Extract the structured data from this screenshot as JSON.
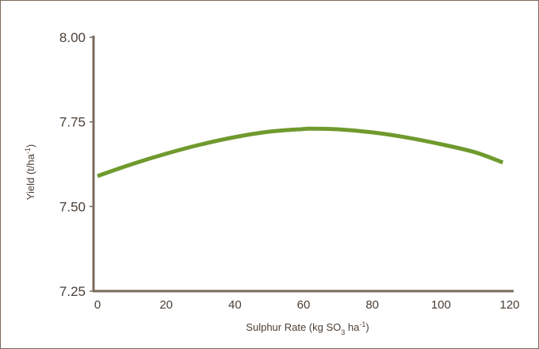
{
  "chart_data": {
    "type": "line",
    "title": "",
    "xlabel": {
      "prefix": "Sulphur Rate (kg SO",
      "subscript": "3",
      "middle": " ha",
      "superscript": "-1",
      "suffix": ")"
    },
    "ylabel": {
      "prefix": "Yield (t/ha",
      "superscript": "-1",
      "suffix": ")"
    },
    "xlim": [
      0,
      120
    ],
    "ylim": [
      7.25,
      8.0
    ],
    "x_ticks": [
      0,
      20,
      40,
      60,
      80,
      100,
      120
    ],
    "y_ticks": [
      "7.25",
      "7.50",
      "7.75",
      "8.00"
    ],
    "grid": false,
    "series": [
      {
        "color": "#6f9a2e",
        "points": [
          {
            "x": 0,
            "y": 7.59
          },
          {
            "x": 10,
            "y": 7.625
          },
          {
            "x": 20,
            "y": 7.656
          },
          {
            "x": 30,
            "y": 7.683
          },
          {
            "x": 40,
            "y": 7.705
          },
          {
            "x": 50,
            "y": 7.721
          },
          {
            "x": 60,
            "y": 7.729
          },
          {
            "x": 62,
            "y": 7.73
          },
          {
            "x": 70,
            "y": 7.728
          },
          {
            "x": 80,
            "y": 7.719
          },
          {
            "x": 90,
            "y": 7.704
          },
          {
            "x": 100,
            "y": 7.684
          },
          {
            "x": 110,
            "y": 7.66
          },
          {
            "x": 118,
            "y": 7.63
          }
        ]
      }
    ],
    "colors": {
      "axis": "#7a6a5c",
      "text": "#4a3f36",
      "line": "#6f9a2e"
    }
  }
}
